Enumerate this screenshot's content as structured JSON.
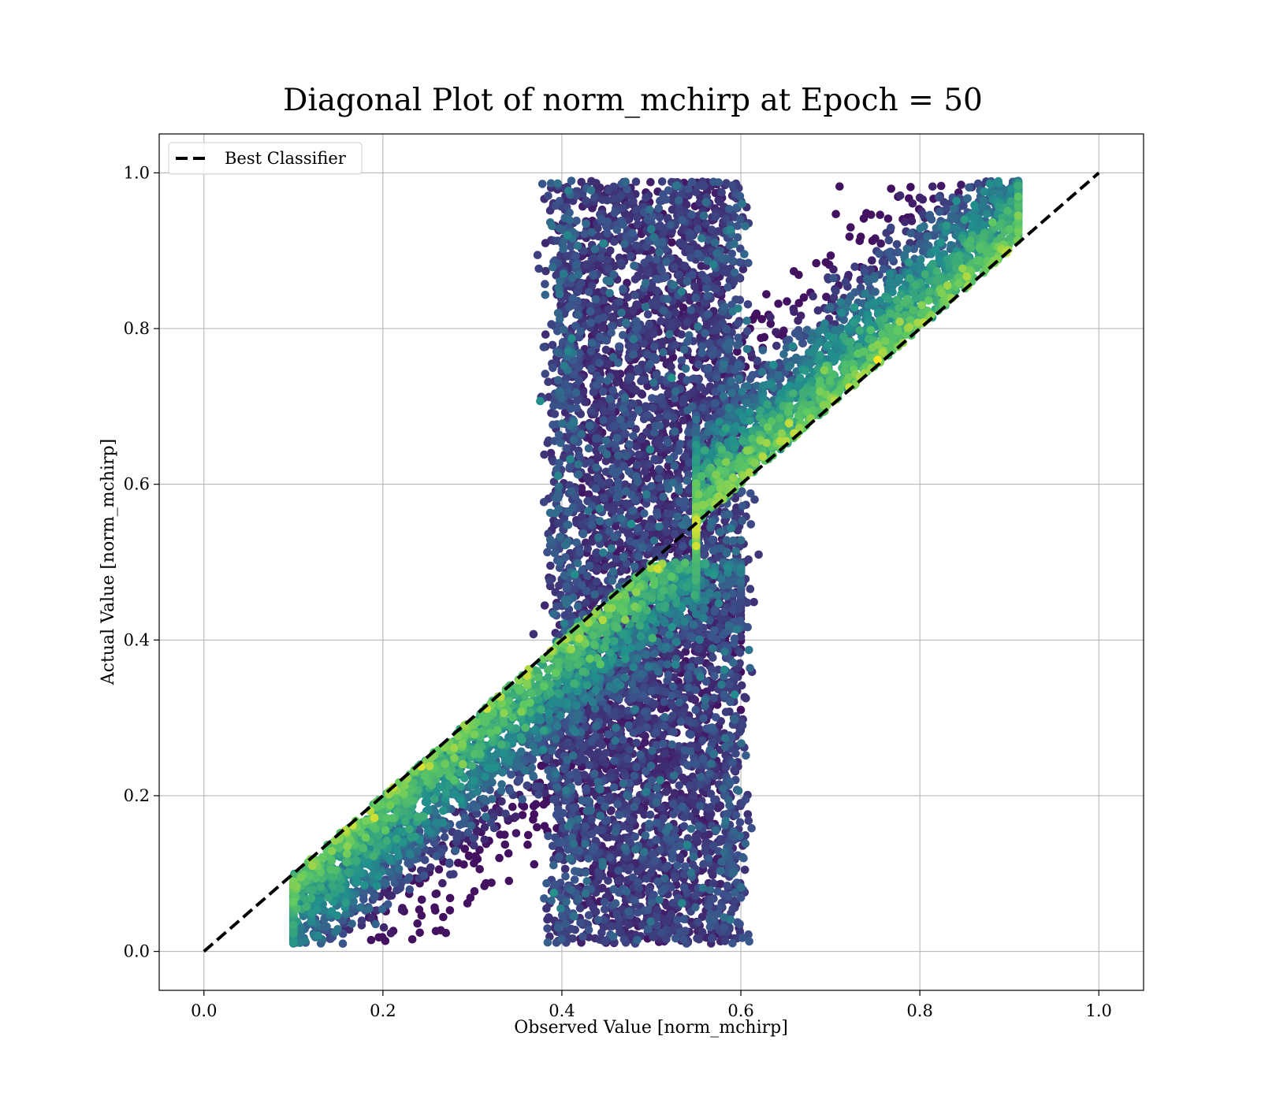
{
  "chart_data": {
    "type": "scatter",
    "title": "Diagonal Plot of norm_mchirp at Epoch = 50",
    "xlabel": "Observed Value [norm_mchirp]",
    "ylabel": "Actual Value [norm_mchirp]",
    "xlim": [
      -0.05,
      1.05
    ],
    "ylim": [
      -0.05,
      1.05
    ],
    "x_ticks": [
      "0.0",
      "0.2",
      "0.4",
      "0.6",
      "0.8",
      "1.0"
    ],
    "y_ticks": [
      "0.0",
      "0.2",
      "0.4",
      "0.6",
      "0.8",
      "1.0"
    ],
    "grid": true,
    "legend": {
      "position": "top-left",
      "entries": [
        "Best Classifier"
      ]
    },
    "colormap": "viridis",
    "colormap_stops": [
      "#440154",
      "#3b528b",
      "#21918c",
      "#5ec962",
      "#fde725"
    ],
    "reference_line": {
      "name": "Best Classifier",
      "style": "dashed",
      "color": "#000000",
      "x": [
        0.0,
        1.0
      ],
      "y": [
        0.0,
        1.0
      ]
    },
    "scatter_regions": [
      {
        "x_range": [
          0.39,
          0.6
        ],
        "y_range": [
          0.01,
          0.99
        ],
        "color_level": 0.12,
        "share": 0.48
      },
      {
        "x_range": [
          0.1,
          0.6
        ],
        "y_range": [
          0.01,
          0.5
        ],
        "color_level": 0.35,
        "share": 0.26,
        "follows_diagonal": true
      },
      {
        "x_range": [
          0.55,
          0.91
        ],
        "y_range": [
          0.45,
          0.99
        ],
        "color_level": 0.4,
        "share": 0.26,
        "follows_diagonal": true
      }
    ],
    "point_count": 12000
  }
}
